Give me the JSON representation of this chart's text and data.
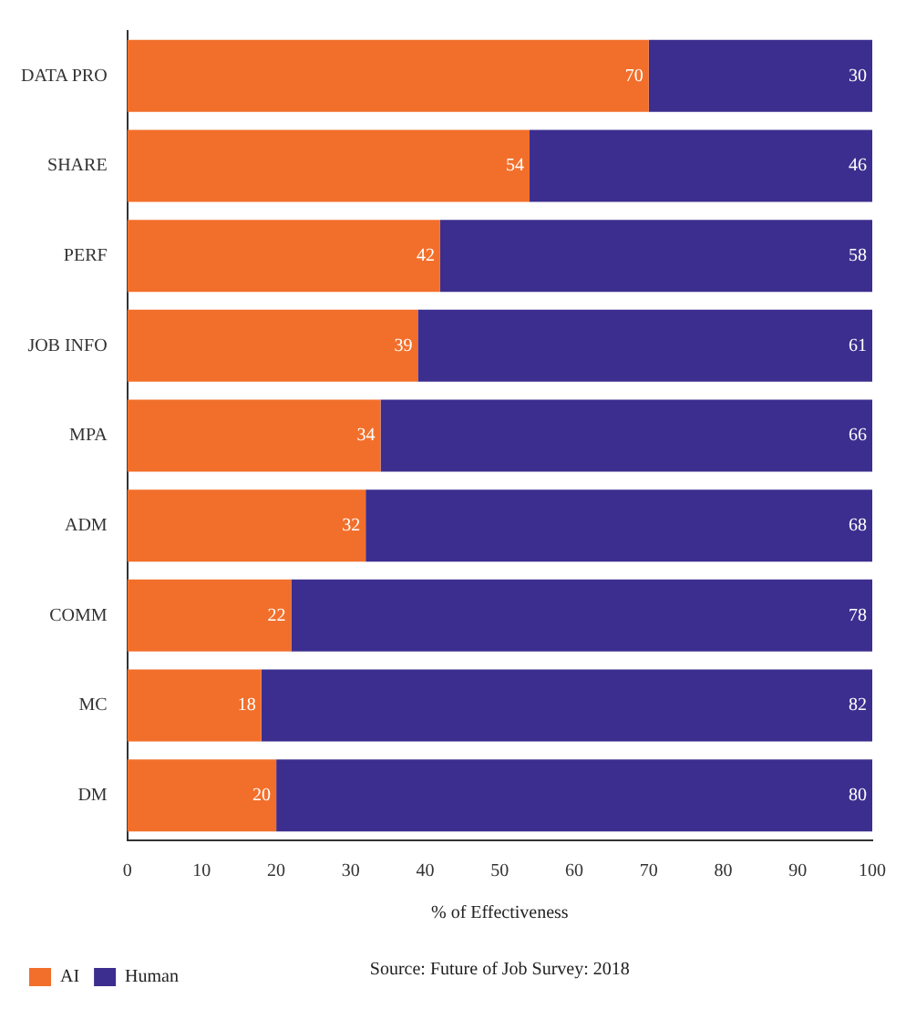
{
  "chart_data": {
    "type": "bar",
    "orientation": "horizontal",
    "stacked": true,
    "xlabel": "% of Effectiveness",
    "annotations": [
      "Source: Future of Job Survey: 2018"
    ],
    "categories": [
      "DATA PRO",
      "SHARE",
      "PERF",
      "JOB INFO",
      "MPA",
      "ADM",
      "COMM",
      "MC",
      "DM"
    ],
    "series": [
      {
        "name": "AI",
        "color": "#f26f2b",
        "values": [
          70,
          54,
          42,
          39,
          34,
          32,
          22,
          18,
          20
        ]
      },
      {
        "name": "Human",
        "color": "#3c2e8f",
        "values": [
          30,
          46,
          58,
          61,
          66,
          68,
          78,
          82,
          80
        ]
      }
    ],
    "xlim": [
      0,
      100
    ],
    "xticks": [
      0,
      10,
      20,
      30,
      40,
      50,
      60,
      70,
      80,
      90,
      100
    ],
    "data_labels": true,
    "grid": false,
    "legend": "bottom left"
  }
}
